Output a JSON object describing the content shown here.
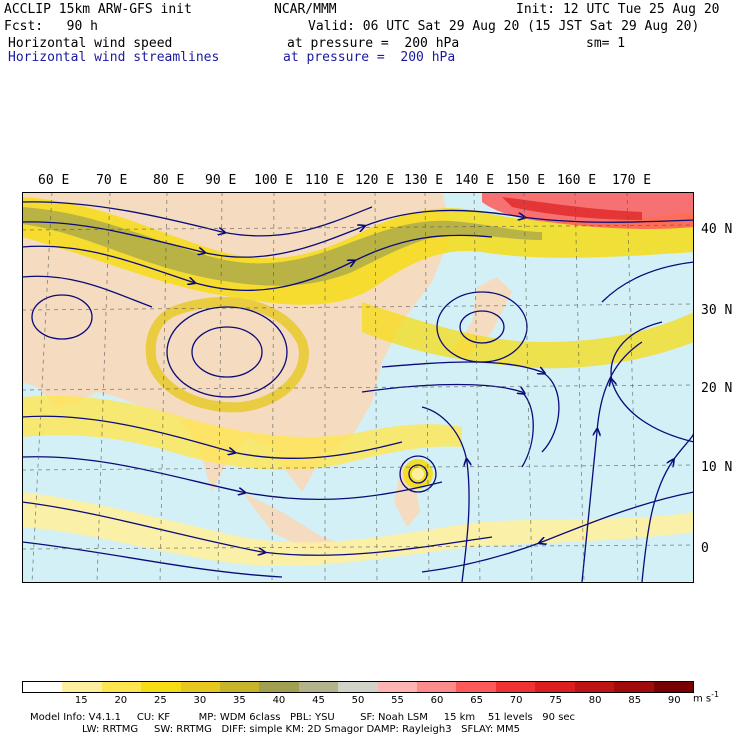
{
  "header": {
    "line1_left": "ACCLIP 15km ARW-GFS init",
    "line1_center": "NCAR/MMM",
    "line1_right": "Init: 12 UTC Tue 25 Aug 20",
    "line2_left": "Fcst:   90 h",
    "line2_right": "Valid: 06 UTC Sat 29 Aug 20 (15 JST Sat 29 Aug 20)",
    "line3_left": "Horizontal wind speed",
    "line3_center": "at pressure =  200 hPa",
    "line3_right": "sm= 1",
    "line4_left": "Horizontal wind streamlines",
    "line4_center": "at pressure =  200 hPa"
  },
  "lon_labels": [
    "60 E",
    "70 E",
    "80 E",
    "90 E",
    "100 E",
    "110 E",
    "120 E",
    "130 E",
    "140 E",
    "150 E",
    "160 E",
    "170 E"
  ],
  "lat_labels": [
    "40 N",
    "30 N",
    "20 N",
    "10 N",
    "0"
  ],
  "colorbar": {
    "labels": [
      "15",
      "20",
      "25",
      "30",
      "35",
      "40",
      "45",
      "50",
      "55",
      "60",
      "65",
      "70",
      "75",
      "80",
      "85",
      "90"
    ],
    "unit": "m s",
    "unit_exp": "-1",
    "colors": [
      "#ffffff",
      "#fff0a0",
      "#ffe650",
      "#f5dc14",
      "#e6c81e",
      "#c8b428",
      "#a0a050",
      "#b4b48c",
      "#d2d2c8",
      "#ffb4b4",
      "#ff8c8c",
      "#ff5a5a",
      "#f03232",
      "#dc1e1e",
      "#be1414",
      "#a00a0a",
      "#780000"
    ]
  },
  "model_info": {
    "line1": "Model Info: V4.1.1     CU: KF         MP: WDM 6class   PBL: YSU        SF: Noah LSM     15 km    51 levels   90 sec",
    "line2": "LW: RRTMG     SW: RRTMG   DIFF: simple KM: 2D Smagor DAMP: Rayleigh3   SFLAY: MM5"
  },
  "map": {
    "land_color": "#f5dcc0",
    "ocean_color": "#d2f0f5",
    "streamline_color": "#0a0a7a"
  }
}
